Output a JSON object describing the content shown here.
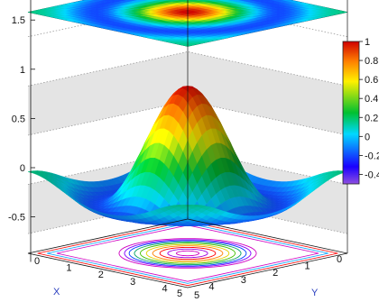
{
  "chart_data": {
    "type": "surface",
    "function": "z = sin(r)/r about the center of a 0..5 by 0..5 grid",
    "xlabel": "X",
    "ylabel": "Y",
    "zlabel": "",
    "xlim": [
      0,
      5
    ],
    "ylim": [
      0,
      5
    ],
    "zlim": [
      -0.7,
      1.8
    ],
    "x_ticks": [
      0,
      1,
      2,
      3,
      4,
      5
    ],
    "y_ticks": [
      0,
      1,
      2,
      3,
      4,
      5
    ],
    "z_ticks": [
      -0.5,
      0,
      0.5,
      1,
      1.5
    ],
    "z_tick_labels": [
      "-0.5",
      "0",
      "0.5",
      "1",
      "1.5"
    ],
    "x_tick_labels": [
      "0",
      "1",
      "2",
      "3",
      "4",
      "5"
    ],
    "y_tick_labels": [
      "0",
      "1",
      "2",
      "3",
      "4",
      "5"
    ],
    "projections": [
      "heatmap-top",
      "contour-bottom"
    ],
    "grid": true,
    "colorbar": {
      "ticks": [
        1,
        0.8,
        0.6,
        0.4,
        0.2,
        0,
        -0.2,
        -0.4
      ],
      "tick_labels": [
        "1",
        "0.8",
        "0.6",
        "0.4",
        "0.2",
        "0",
        "-0.2",
        "-0.4"
      ],
      "range": [
        -0.5,
        1.0
      ],
      "placement": "right"
    },
    "colormap": [
      "#8f4fe0",
      "#1a00ff",
      "#00e0ff",
      "#00c030",
      "#fff000",
      "#ff8000",
      "#d00000"
    ]
  }
}
